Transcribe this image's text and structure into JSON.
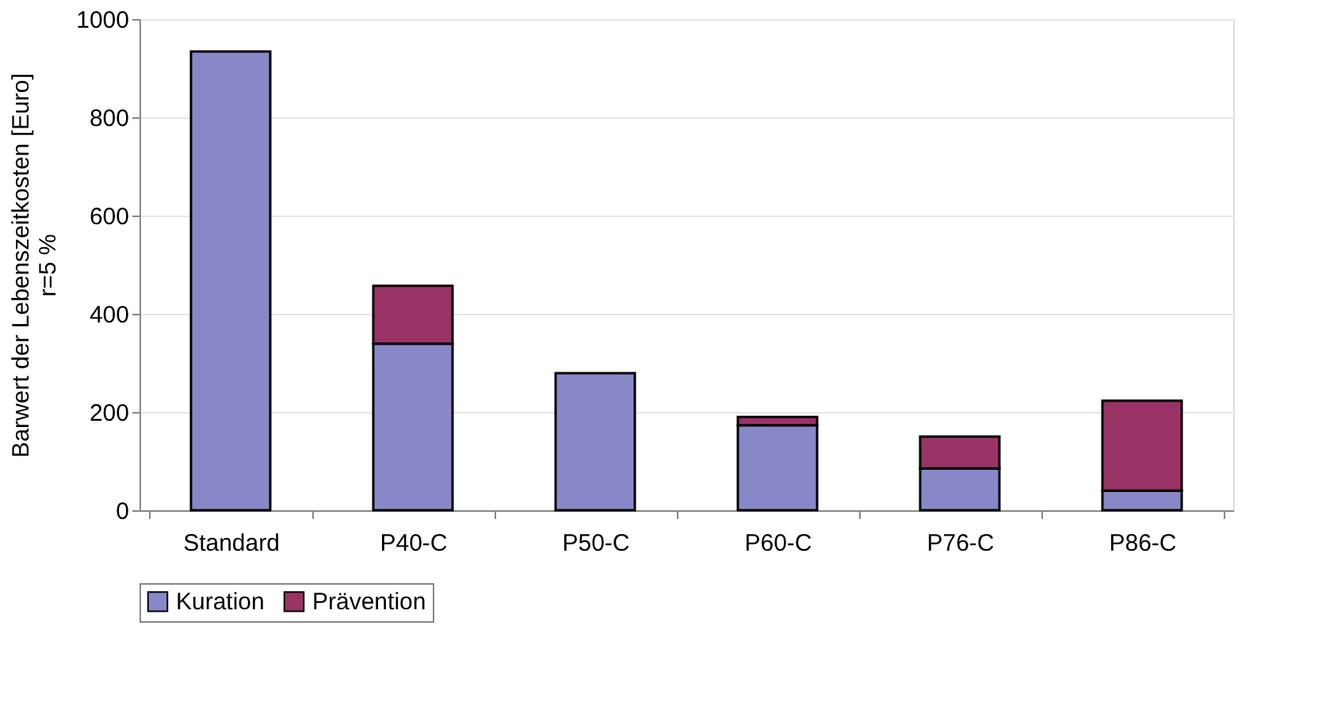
{
  "chart_data": {
    "type": "bar",
    "stacked": true,
    "ylabel": "Barwert der Lebenszeitkosten [Euro]\nr=5 %",
    "categories": [
      "Standard",
      "P40-C",
      "P50-C",
      "P60-C",
      "P76-C",
      "P86-C"
    ],
    "series": [
      {
        "name": "Kuration",
        "color": "#8888c8",
        "values": [
          934,
          339,
          279,
          173,
          85,
          40
        ]
      },
      {
        "name": "Prävention",
        "color": "#993366",
        "values": [
          0,
          118,
          0,
          17,
          65,
          183
        ]
      }
    ],
    "ylim": [
      0,
      1000
    ],
    "yticks": [
      0,
      200,
      400,
      600,
      800,
      1000
    ],
    "grid": "y",
    "legend": "bottom"
  }
}
